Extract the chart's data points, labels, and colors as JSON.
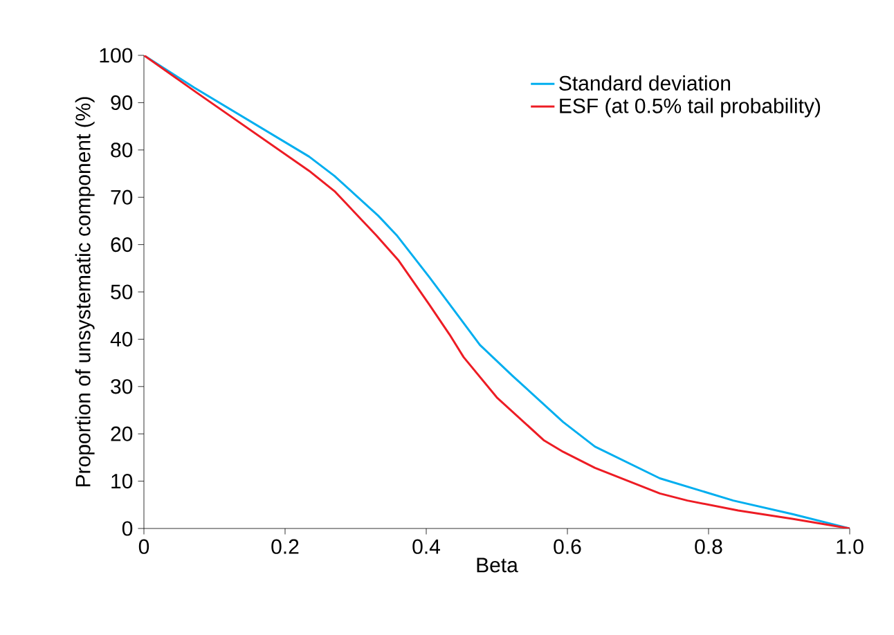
{
  "chart_data": {
    "type": "line",
    "xlabel": "Beta",
    "ylabel": "Proportion of unsystematic component (%)",
    "xlim": [
      0,
      1
    ],
    "ylim": [
      0,
      100
    ],
    "xticks": [
      0,
      0.2,
      0.4,
      0.6,
      0.8,
      {
        "value": 1,
        "label": "1.0"
      }
    ],
    "yticks": [
      0,
      10,
      20,
      30,
      40,
      50,
      60,
      70,
      80,
      90,
      100
    ],
    "legend": "top right",
    "grid": false,
    "marker": "none",
    "line_style": "solid",
    "series": [
      {
        "name": "Standard deviation",
        "color": "#00aeef",
        "x": [
          0,
          0.071,
          0.234,
          0.27,
          0.332,
          0.358,
          0.404,
          0.443,
          0.476,
          0.522,
          0.594,
          0.639,
          0.731,
          0.835,
          0.92,
          1
        ],
        "values": [
          100,
          93.2,
          78.6,
          74.5,
          66.1,
          62,
          53.2,
          45.4,
          38.8,
          32.3,
          22.5,
          17.3,
          10.6,
          5.9,
          3,
          0
        ]
      },
      {
        "name": "ESF (at 0.5% tail probability)",
        "color": "#ed1c24",
        "x": [
          0,
          0.074,
          0.234,
          0.27,
          0.329,
          0.361,
          0.404,
          0.433,
          0.453,
          0.5,
          0.567,
          0.594,
          0.639,
          0.731,
          0.77,
          0.842,
          0.92,
          1
        ],
        "values": [
          100,
          92.2,
          75.6,
          71.3,
          62,
          56.6,
          47.4,
          41,
          36.2,
          27.7,
          18.6,
          16.2,
          12.8,
          7.4,
          5.9,
          3.8,
          2,
          0
        ]
      }
    ]
  }
}
